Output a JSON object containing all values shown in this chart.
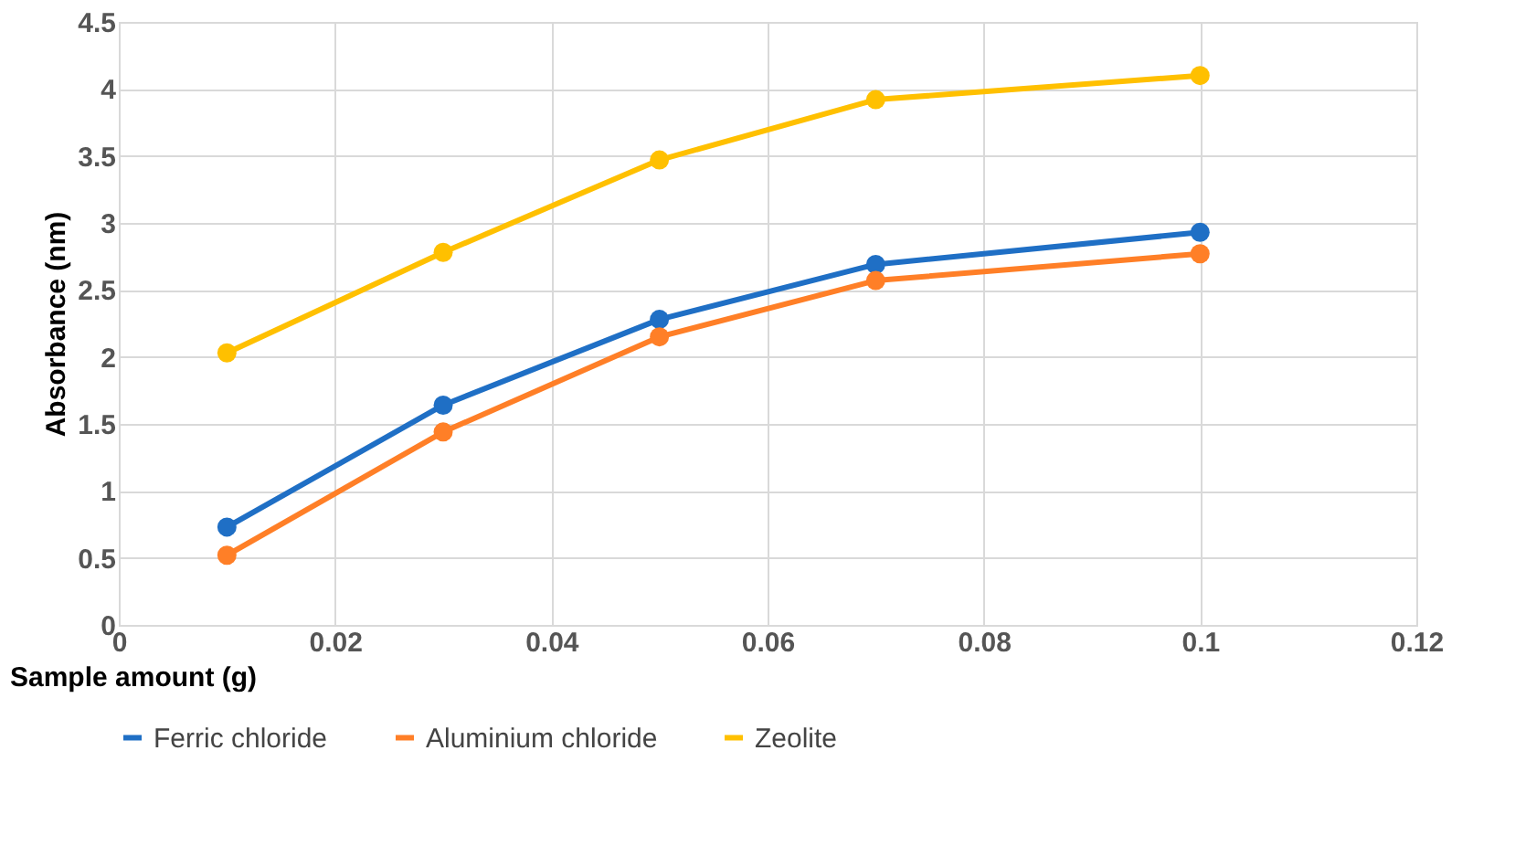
{
  "chart_data": {
    "type": "line",
    "xlabel": "Sample amount (g)",
    "ylabel": "Absorbance (nm)",
    "x": [
      0.01,
      0.03,
      0.05,
      0.07,
      0.1
    ],
    "series": [
      {
        "name": "Ferric chloride",
        "color": "#1f6fc5",
        "values": [
          0.73,
          1.64,
          2.28,
          2.69,
          2.93
        ]
      },
      {
        "name": "Aluminium chloride",
        "color": "#ff7f27",
        "values": [
          0.52,
          1.44,
          2.15,
          2.57,
          2.77
        ]
      },
      {
        "name": "Zeolite",
        "color": "#ffc000",
        "values": [
          2.03,
          2.78,
          3.47,
          3.92,
          4.1
        ]
      }
    ],
    "xlim": [
      0,
      0.12
    ],
    "xticks": [
      0,
      0.02,
      0.04,
      0.06,
      0.08,
      0.1,
      0.12
    ],
    "ylim": [
      0,
      4.5
    ],
    "yticks": [
      0,
      0.5,
      1,
      1.5,
      2,
      2.5,
      3,
      3.5,
      4,
      4.5
    ],
    "grid": true,
    "legend": "bottom",
    "marker": "circle",
    "line_style": "solid"
  }
}
